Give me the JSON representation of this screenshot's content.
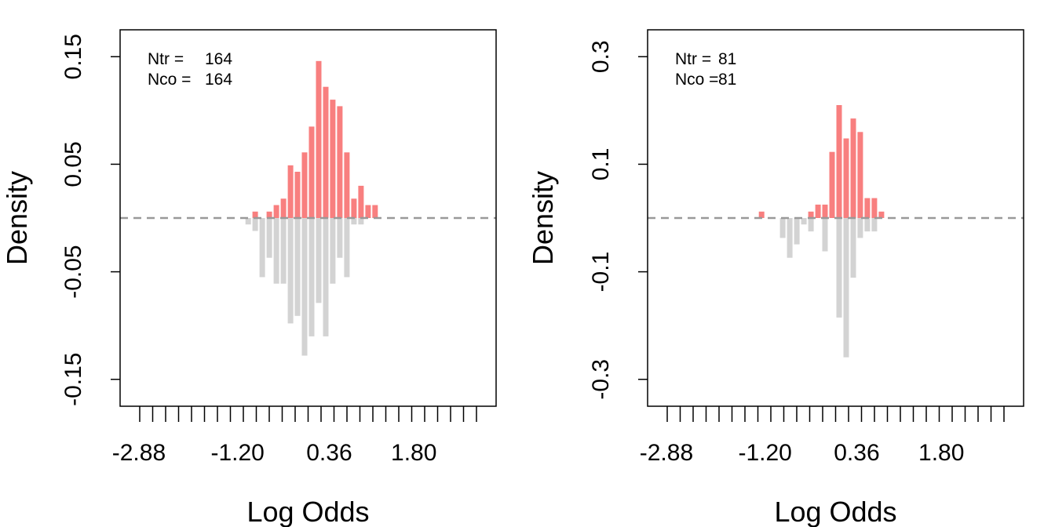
{
  "colors": {
    "treated": "#f87f7f",
    "control": "#d3d3d3",
    "baseline": "#999999",
    "axis": "#000000"
  },
  "chart_data": [
    {
      "type": "bar",
      "title": "",
      "xlabel": "Log Odds",
      "ylabel": "Density",
      "xlim": [
        -3.2,
        3.2
      ],
      "ylim": [
        -0.175,
        0.175
      ],
      "x_ticks": [
        -2.88,
        -1.2,
        0.36,
        1.8
      ],
      "x_tick_labels": [
        "-2.88",
        "-1.20",
        "0.36",
        "1.80"
      ],
      "y_ticks": [
        -0.15,
        -0.05,
        0.05,
        0.15
      ],
      "y_tick_labels": [
        "-0.15",
        "-0.05",
        "0.05",
        "0.15"
      ],
      "grid": false,
      "baseline": 0,
      "stats": [
        {
          "label": "Ntr = ",
          "value": "164"
        },
        {
          "label": "Nco = ",
          "value": "164"
        }
      ],
      "bin_width": 0.12,
      "series": [
        {
          "name": "treated",
          "x": [
            -0.96,
            -0.72,
            -0.6,
            -0.48,
            -0.36,
            -0.24,
            -0.12,
            0,
            0.12,
            0.24,
            0.36,
            0.48,
            0.6,
            0.72,
            0.84,
            0.96,
            1.08
          ],
          "values": [
            0.006,
            0.006,
            0.012,
            0.018,
            0.049,
            0.043,
            0.061,
            0.085,
            0.146,
            0.122,
            0.11,
            0.104,
            0.061,
            0.018,
            0.03,
            0.012,
            0.012
          ]
        },
        {
          "name": "control",
          "x": [
            -1.08,
            -0.96,
            -0.84,
            -0.72,
            -0.6,
            -0.48,
            -0.36,
            -0.24,
            -0.12,
            0,
            0.12,
            0.24,
            0.36,
            0.48,
            0.6,
            0.72,
            0.84
          ],
          "values": [
            -0.006,
            -0.012,
            -0.055,
            -0.037,
            -0.061,
            -0.061,
            -0.098,
            -0.091,
            -0.128,
            -0.11,
            -0.079,
            -0.11,
            -0.061,
            -0.037,
            -0.055,
            -0.006,
            -0.006
          ]
        }
      ]
    },
    {
      "type": "bar",
      "title": "",
      "xlabel": "Log Odds",
      "ylabel": "Density",
      "xlim": [
        -3.2,
        3.2
      ],
      "ylim": [
        -0.35,
        0.35
      ],
      "x_ticks": [
        -2.88,
        -1.2,
        0.36,
        1.8
      ],
      "x_tick_labels": [
        "-2.88",
        "-1.20",
        "0.36",
        "1.80"
      ],
      "y_ticks": [
        -0.3,
        -0.1,
        0.1,
        0.3
      ],
      "y_tick_labels": [
        "-0.3",
        "-0.1",
        "0.1",
        "0.3"
      ],
      "grid": false,
      "baseline": 0,
      "stats": [
        {
          "label": "Ntr = ",
          "value": "81"
        },
        {
          "label": "Nco = ",
          "value": "81"
        }
      ],
      "bin_width": 0.12,
      "series": [
        {
          "name": "treated",
          "x": [
            -1.32,
            -0.48,
            -0.36,
            -0.24,
            -0.12,
            0,
            0.12,
            0.24,
            0.36,
            0.48,
            0.6,
            0.72
          ],
          "values": [
            0.012,
            0.012,
            0.025,
            0.025,
            0.123,
            0.21,
            0.148,
            0.185,
            0.16,
            0.037,
            0.037,
            0.012
          ]
        },
        {
          "name": "control",
          "x": [
            -0.96,
            -0.84,
            -0.72,
            -0.6,
            -0.48,
            -0.24,
            0,
            0.12,
            0.24,
            0.36,
            0.48,
            0.6
          ],
          "values": [
            -0.037,
            -0.074,
            -0.049,
            -0.012,
            -0.025,
            -0.062,
            -0.185,
            -0.259,
            -0.111,
            -0.037,
            -0.025,
            -0.025
          ]
        }
      ]
    }
  ]
}
